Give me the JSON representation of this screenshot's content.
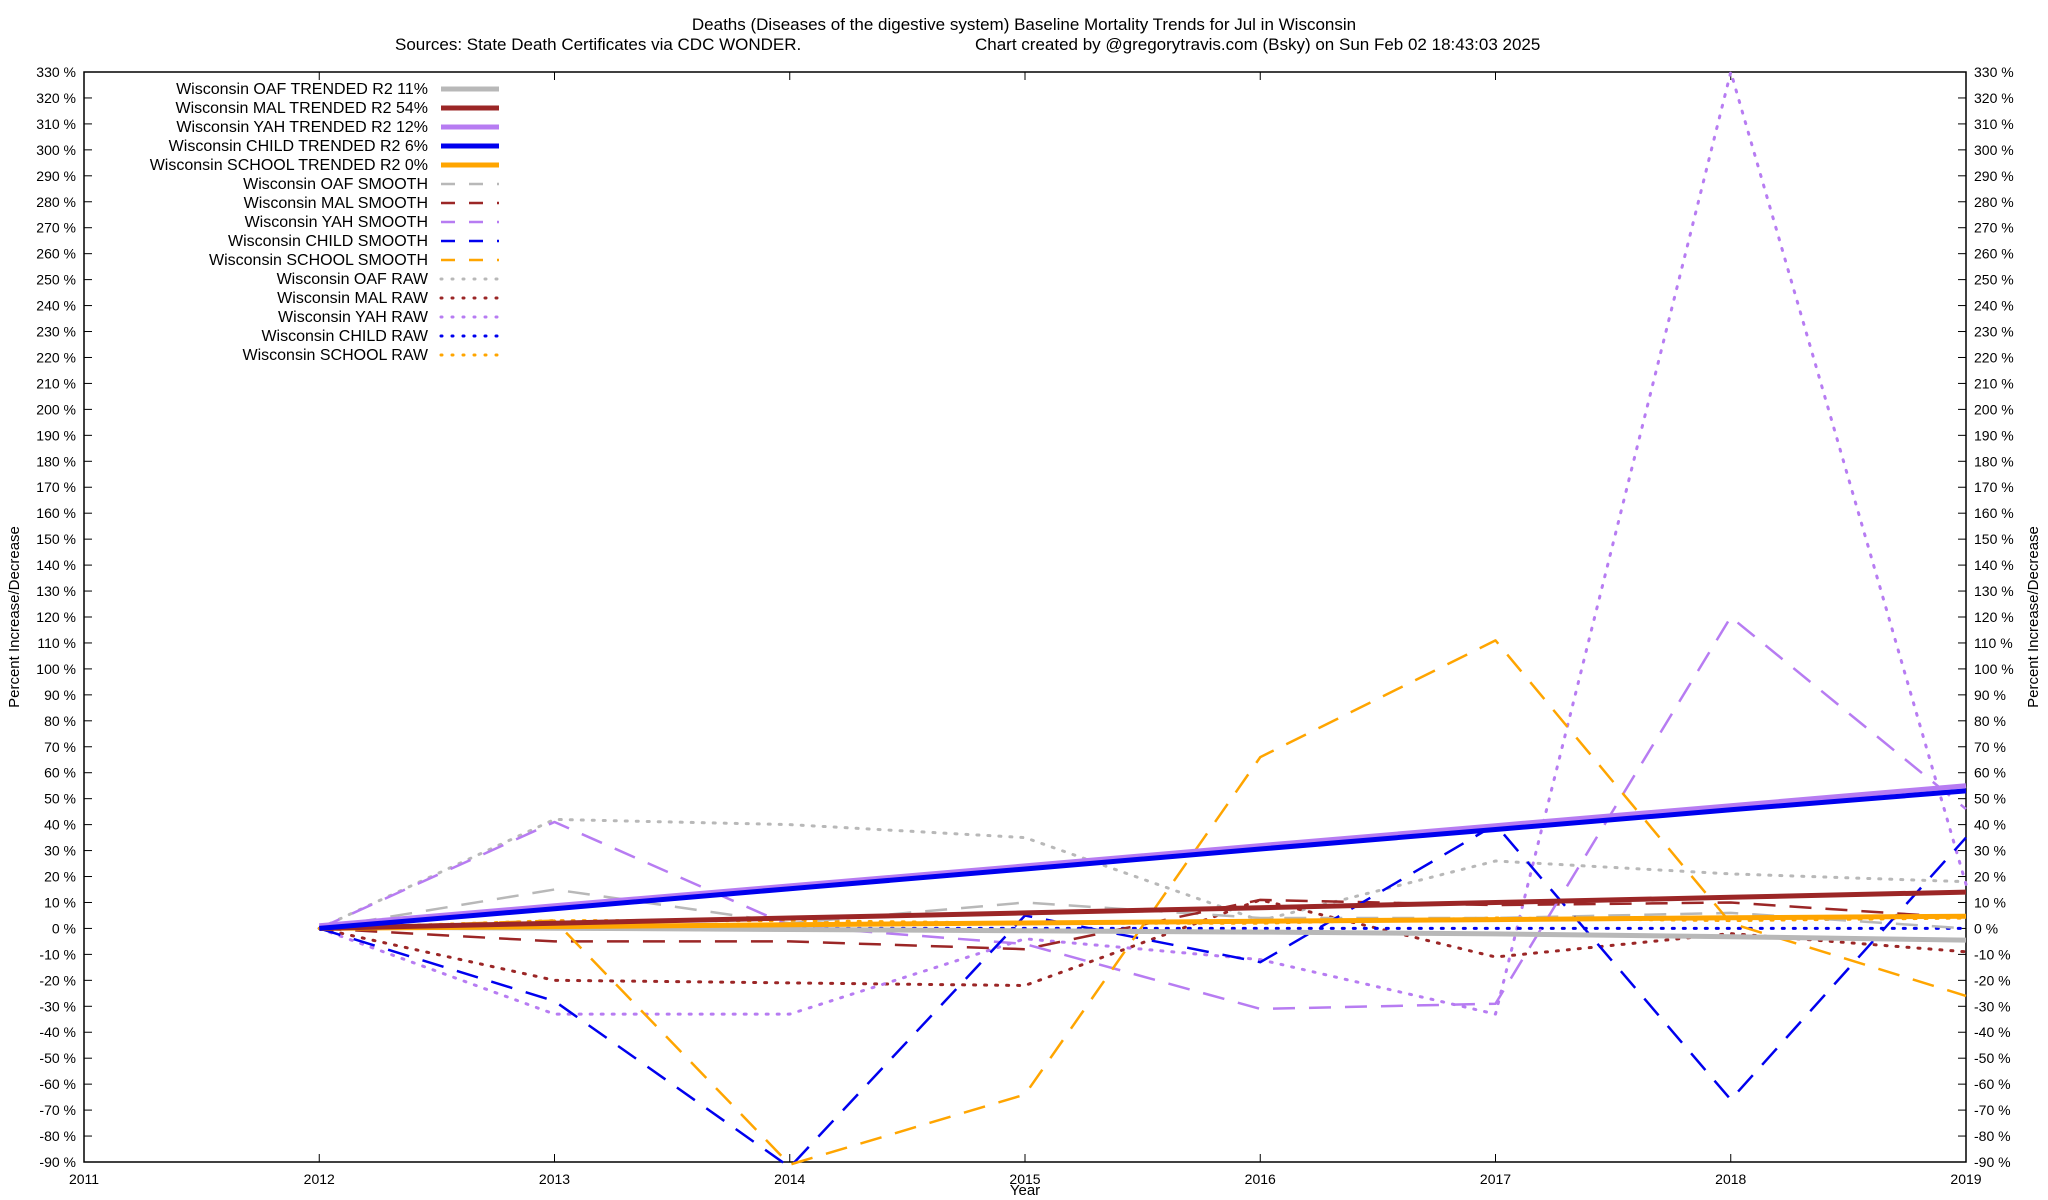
{
  "chart_data": {
    "type": "line",
    "title": "Deaths (Diseases of the digestive system)  Baseline Mortality Trends for Jul in Wisconsin",
    "subtitle_left": "Sources: State Death Certificates via CDC WONDER.",
    "subtitle_right": "Chart created by @gregorytravis.com (Bsky) on Sun Feb 02 18:43:03 2025",
    "xlabel": "Year",
    "ylabel": "Percent Increase/Decrease",
    "y2label": "Percent Increase/Decrease",
    "xlim": [
      2011,
      2019
    ],
    "ylim": [
      -90,
      330
    ],
    "x_ticks": [
      "2011",
      "2012",
      "2013",
      "2014",
      "2015",
      "2016",
      "2017",
      "2018",
      "2019"
    ],
    "y_ticks": [
      "330 %",
      "320 %",
      "310 %",
      "300 %",
      "290 %",
      "280 %",
      "270 %",
      "260 %",
      "250 %",
      "240 %",
      "230 %",
      "220 %",
      "210 %",
      "200 %",
      "190 %",
      "180 %",
      "170 %",
      "160 %",
      "150 %",
      "140 %",
      "130 %",
      "120 %",
      "110 %",
      "100 %",
      "90 %",
      "80 %",
      "70 %",
      "60 %",
      "50 %",
      "40 %",
      "30 %",
      "20 %",
      "10 %",
      "0 %",
      "-10 %",
      "-20 %",
      "-30 %",
      "-40 %",
      "-50 %",
      "-60 %",
      "-70 %",
      "-80 %",
      "-90 %"
    ],
    "y_tick_values": [
      330,
      320,
      310,
      300,
      290,
      280,
      270,
      260,
      250,
      240,
      230,
      220,
      210,
      200,
      190,
      180,
      170,
      160,
      150,
      140,
      130,
      120,
      110,
      100,
      90,
      80,
      70,
      60,
      50,
      40,
      30,
      20,
      10,
      0,
      -10,
      -20,
      -30,
      -40,
      -50,
      -60,
      -70,
      -80,
      -90
    ],
    "grid": false,
    "legend_position": "top-left",
    "x": [
      2012,
      2013,
      2014,
      2015,
      2016,
      2017,
      2018,
      2019
    ],
    "series": [
      {
        "name": "Wisconsin OAF TRENDED R2  11%",
        "style": "solid",
        "color": "#b8b8b8",
        "values": [
          0.5,
          0.1,
          -0.4,
          -0.9,
          -1.4,
          -2.1,
          -3.2,
          -4.5
        ]
      },
      {
        "name": "Wisconsin MAL TRENDED R2  54%",
        "style": "solid",
        "color": "#9b2626",
        "values": [
          0,
          2,
          4,
          6,
          8,
          10,
          12,
          14
        ]
      },
      {
        "name": "Wisconsin YAH TRENDED R2  12%",
        "style": "solid",
        "color": "#b77cf2",
        "values": [
          1,
          8.7,
          16.4,
          24.1,
          31.9,
          39.6,
          47.3,
          55
        ]
      },
      {
        "name": "Wisconsin CHILD TRENDED R2  6%",
        "style": "solid",
        "color": "#0000ee",
        "values": [
          0,
          7.6,
          15.3,
          22.9,
          30.6,
          38.1,
          45.7,
          53
        ]
      },
      {
        "name": "Wisconsin SCHOOL TRENDED R2  0%",
        "style": "solid",
        "color": "#ffa500",
        "values": [
          0,
          0.7,
          1.4,
          2.1,
          2.8,
          3.4,
          4.1,
          4.7
        ]
      },
      {
        "name": "Wisconsin OAF SMOOTH",
        "style": "dashed",
        "color": "#b8b8b8",
        "values": [
          0,
          15,
          2,
          10,
          4,
          4,
          6,
          0
        ]
      },
      {
        "name": "Wisconsin MAL SMOOTH",
        "style": "dashed",
        "color": "#9b2626",
        "values": [
          0,
          -5,
          -5,
          -8,
          11,
          9,
          10,
          4
        ]
      },
      {
        "name": "Wisconsin YAH SMOOTH",
        "style": "dashed",
        "color": "#b77cf2",
        "values": [
          0,
          41,
          1,
          -6,
          -31,
          -29,
          120,
          46
        ]
      },
      {
        "name": "Wisconsin CHILD SMOOTH",
        "style": "dashed",
        "color": "#0000ee",
        "values": [
          0,
          -28,
          -92,
          5,
          -13,
          40,
          -66,
          35
        ]
      },
      {
        "name": "Wisconsin SCHOOL SMOOTH",
        "style": "dashed",
        "color": "#ffa500",
        "values": [
          0,
          3,
          -91,
          -64,
          66,
          111,
          2,
          -26
        ]
      },
      {
        "name": "Wisconsin OAF RAW",
        "style": "dotted",
        "color": "#b8b8b8",
        "values": [
          0,
          42,
          40,
          35,
          3,
          26,
          21,
          18
        ]
      },
      {
        "name": "Wisconsin MAL RAW",
        "style": "dotted",
        "color": "#9b2626",
        "values": [
          0,
          -20,
          -21,
          -22,
          11,
          -11,
          -2,
          -9
        ]
      },
      {
        "name": "Wisconsin YAH RAW",
        "style": "dotted",
        "color": "#b77cf2",
        "values": [
          0,
          -33,
          -33,
          -4,
          -12,
          -33,
          330,
          17
        ]
      },
      {
        "name": "Wisconsin CHILD RAW",
        "style": "dotted",
        "color": "#0000ee",
        "values": [
          0,
          0,
          0,
          0,
          0,
          0,
          0,
          0
        ]
      },
      {
        "name": "Wisconsin SCHOOL RAW",
        "style": "dotted",
        "color": "#ffa500",
        "values": [
          0,
          3,
          3,
          2,
          2,
          4,
          3,
          4
        ]
      }
    ]
  }
}
